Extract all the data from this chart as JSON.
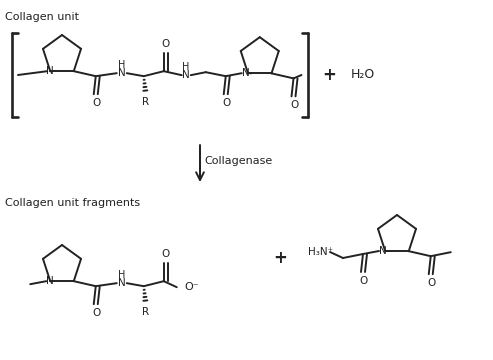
{
  "bg_color": "#ffffff",
  "line_color": "#222222",
  "text_color": "#222222",
  "title1": "Collagen unit",
  "title2": "Collagen unit fragments",
  "enzyme_label": "Collagenase",
  "water": "H₂O",
  "lw": 1.4,
  "fig_width": 4.93,
  "fig_height": 3.6,
  "dpi": 100
}
